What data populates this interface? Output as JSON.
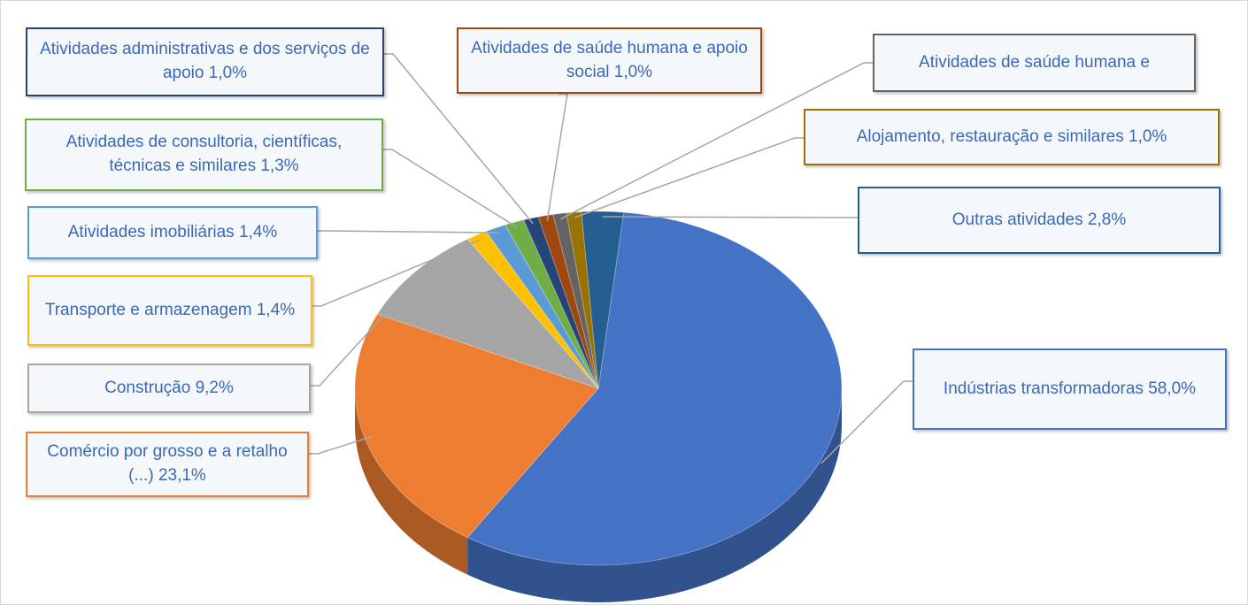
{
  "chart_data": {
    "type": "pie",
    "categories": [
      "Indústrias transformadoras",
      "Comércio por grosso e a retalho (...)",
      "Construção",
      "Transporte e armazenagem",
      "Atividades imobiliárias",
      "Atividades de consultoria, científicas, técnicas e similares",
      "Atividades administrativas e dos serviços de apoio",
      "Atividades de saúde humana e apoio social",
      "Atividades de saúde humana e",
      "Alojamento, restauração e similares",
      "Outras atividades"
    ],
    "values": [
      58.0,
      23.1,
      9.2,
      1.4,
      1.4,
      1.3,
      1.0,
      1.0,
      0.9,
      1.0,
      2.8
    ],
    "value_labels": [
      "58,0%",
      "23,1%",
      "9,2%",
      "1,4%",
      "1,4%",
      "1,3%",
      "1,0%",
      "1,0%",
      null,
      "1,0%",
      "2,8%"
    ],
    "colors": [
      "#4472c4",
      "#ed7d31",
      "#a5a5a5",
      "#ffc000",
      "#5b9bd5",
      "#70ad47",
      "#264478",
      "#9e480e",
      "#636363",
      "#997300",
      "#255e91"
    ]
  }
}
